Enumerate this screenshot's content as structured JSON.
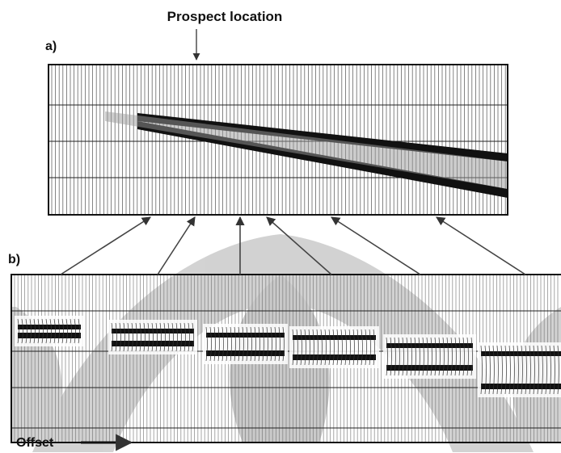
{
  "header": {
    "title": "Prospect location"
  },
  "panels": [
    {
      "label": "a)"
    },
    {
      "label": "b)"
    }
  ],
  "axis": {
    "label": "Offset"
  }
}
